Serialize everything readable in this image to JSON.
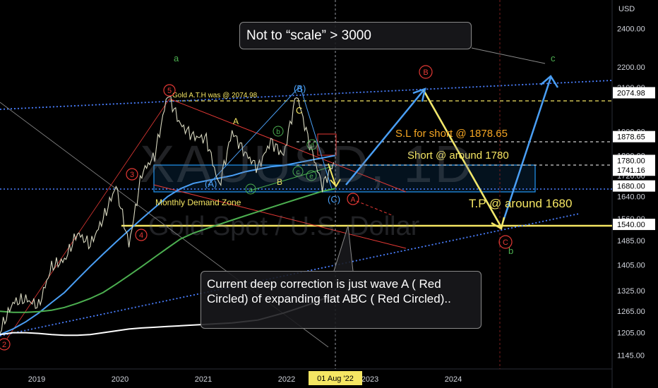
{
  "chart_data": {
    "type": "line",
    "symbol_watermark": "XAUUSD, 1D",
    "description_watermark": "Gold Spot / U.S. Dollar",
    "currency": "USD",
    "x_ticks": [
      "2019",
      "2020",
      "2021",
      "2022",
      "2023",
      "2024"
    ],
    "crosshair_date": "01 Aug '22",
    "y_ticks": [
      "2400.00",
      "2200.00",
      "2100.00",
      "1900.00",
      "1800.00",
      "1720.00",
      "1640.00",
      "1560.00",
      "1485.00",
      "1405.00",
      "1325.00",
      "1265.00",
      "1205.00",
      "1145.00"
    ],
    "ylim": [
      1110,
      2560
    ],
    "price_tags": [
      {
        "value": "2074.98",
        "bg": "#ffffff",
        "fg": "#000000"
      },
      {
        "value": "1878.65",
        "bg": "#ffffff",
        "fg": "#000000"
      },
      {
        "value": "1780.00",
        "bg": "#ffffff",
        "fg": "#000000"
      },
      {
        "value": "1741.16",
        "bg": "#ffffff",
        "fg": "#000000"
      },
      {
        "value": "1680.00",
        "bg": "#ffffff",
        "fg": "#000000"
      },
      {
        "value": "1540.00",
        "bg": "#ffffff",
        "fg": "#000000"
      }
    ],
    "price_series": {
      "name": "XAUUSD",
      "x": [
        "2018-11",
        "2019-01",
        "2019-03",
        "2019-05",
        "2019-06",
        "2019-07",
        "2019-09",
        "2019-11",
        "2020-01",
        "2020-03",
        "2020-03",
        "2020-05",
        "2020-07",
        "2020-08",
        "2020-09",
        "2020-11",
        "2021-01",
        "2021-03",
        "2021-05",
        "2021-07",
        "2021-09",
        "2021-11",
        "2022-01",
        "2022-03",
        "2022-05",
        "2022-07",
        "2022-08"
      ],
      "y": [
        1210,
        1290,
        1300,
        1280,
        1400,
        1420,
        1510,
        1470,
        1560,
        1680,
        1470,
        1730,
        1800,
        2070,
        1930,
        1880,
        1870,
        1680,
        1900,
        1810,
        1750,
        1860,
        1800,
        2070,
        1850,
        1680,
        1780
      ]
    },
    "moving_averages": [
      {
        "color": "#4a9ff5",
        "y": [
          1200,
          1215,
          1235,
          1260,
          1290,
          1320,
          1360,
          1400,
          1440,
          1480,
          1520,
          1560,
          1600,
          1640,
          1670,
          1690,
          1700,
          1710,
          1720,
          1735,
          1745,
          1755,
          1760,
          1770,
          1780,
          1790,
          1800
        ]
      },
      {
        "color": "#4caf50",
        "y": [
          1265,
          1262,
          1262,
          1264,
          1268,
          1276,
          1288,
          1302,
          1320,
          1345,
          1372,
          1400,
          1430,
          1460,
          1490,
          1510,
          1525,
          1540,
          1555,
          1570,
          1585,
          1600,
          1615,
          1630,
          1645,
          1660,
          1670
        ]
      },
      {
        "color": "#ffffff",
        "y": [
          1200,
          1205,
          1205,
          1203,
          1200,
          1198,
          1198,
          1200,
          1205,
          1210,
          1215,
          1218,
          1220,
          1222,
          1224,
          1226,
          1228,
          1230,
          1232,
          1236,
          1240,
          1250,
          1260,
          1272,
          1285,
          1300,
          1310
        ]
      }
    ],
    "annotations": {
      "top_note": "Not to “scale” > 3000",
      "bottom_note": "Current deep correction is just wave A ( Red Circled) of expanding flat ABC ( Red Circled)..",
      "ath": "Gold A.T.H was @ 2074.98",
      "sl": "S.L for short @ 1878.65",
      "short": "Short @ around 1780",
      "tp": "T.P @ around 1680",
      "demand": "Monthly Demand Zone",
      "waves": {
        "a_top": "a",
        "c_top": "c",
        "b_bottom": "b",
        "w3": "3",
        "w4": "4",
        "w5": "5",
        "w2": "2",
        "A_cap": "A",
        "B_paren": "(B)",
        "C_cap": "C",
        "A_paren": "(A)",
        "B_cap": "B",
        "C_paren": "(C)",
        "red_A": "A",
        "red_B": "B",
        "red_C": "C",
        "g_a": "a",
        "g_b": "b",
        "g_c": "c",
        "g_d": "d",
        "g_e": "e"
      }
    }
  }
}
